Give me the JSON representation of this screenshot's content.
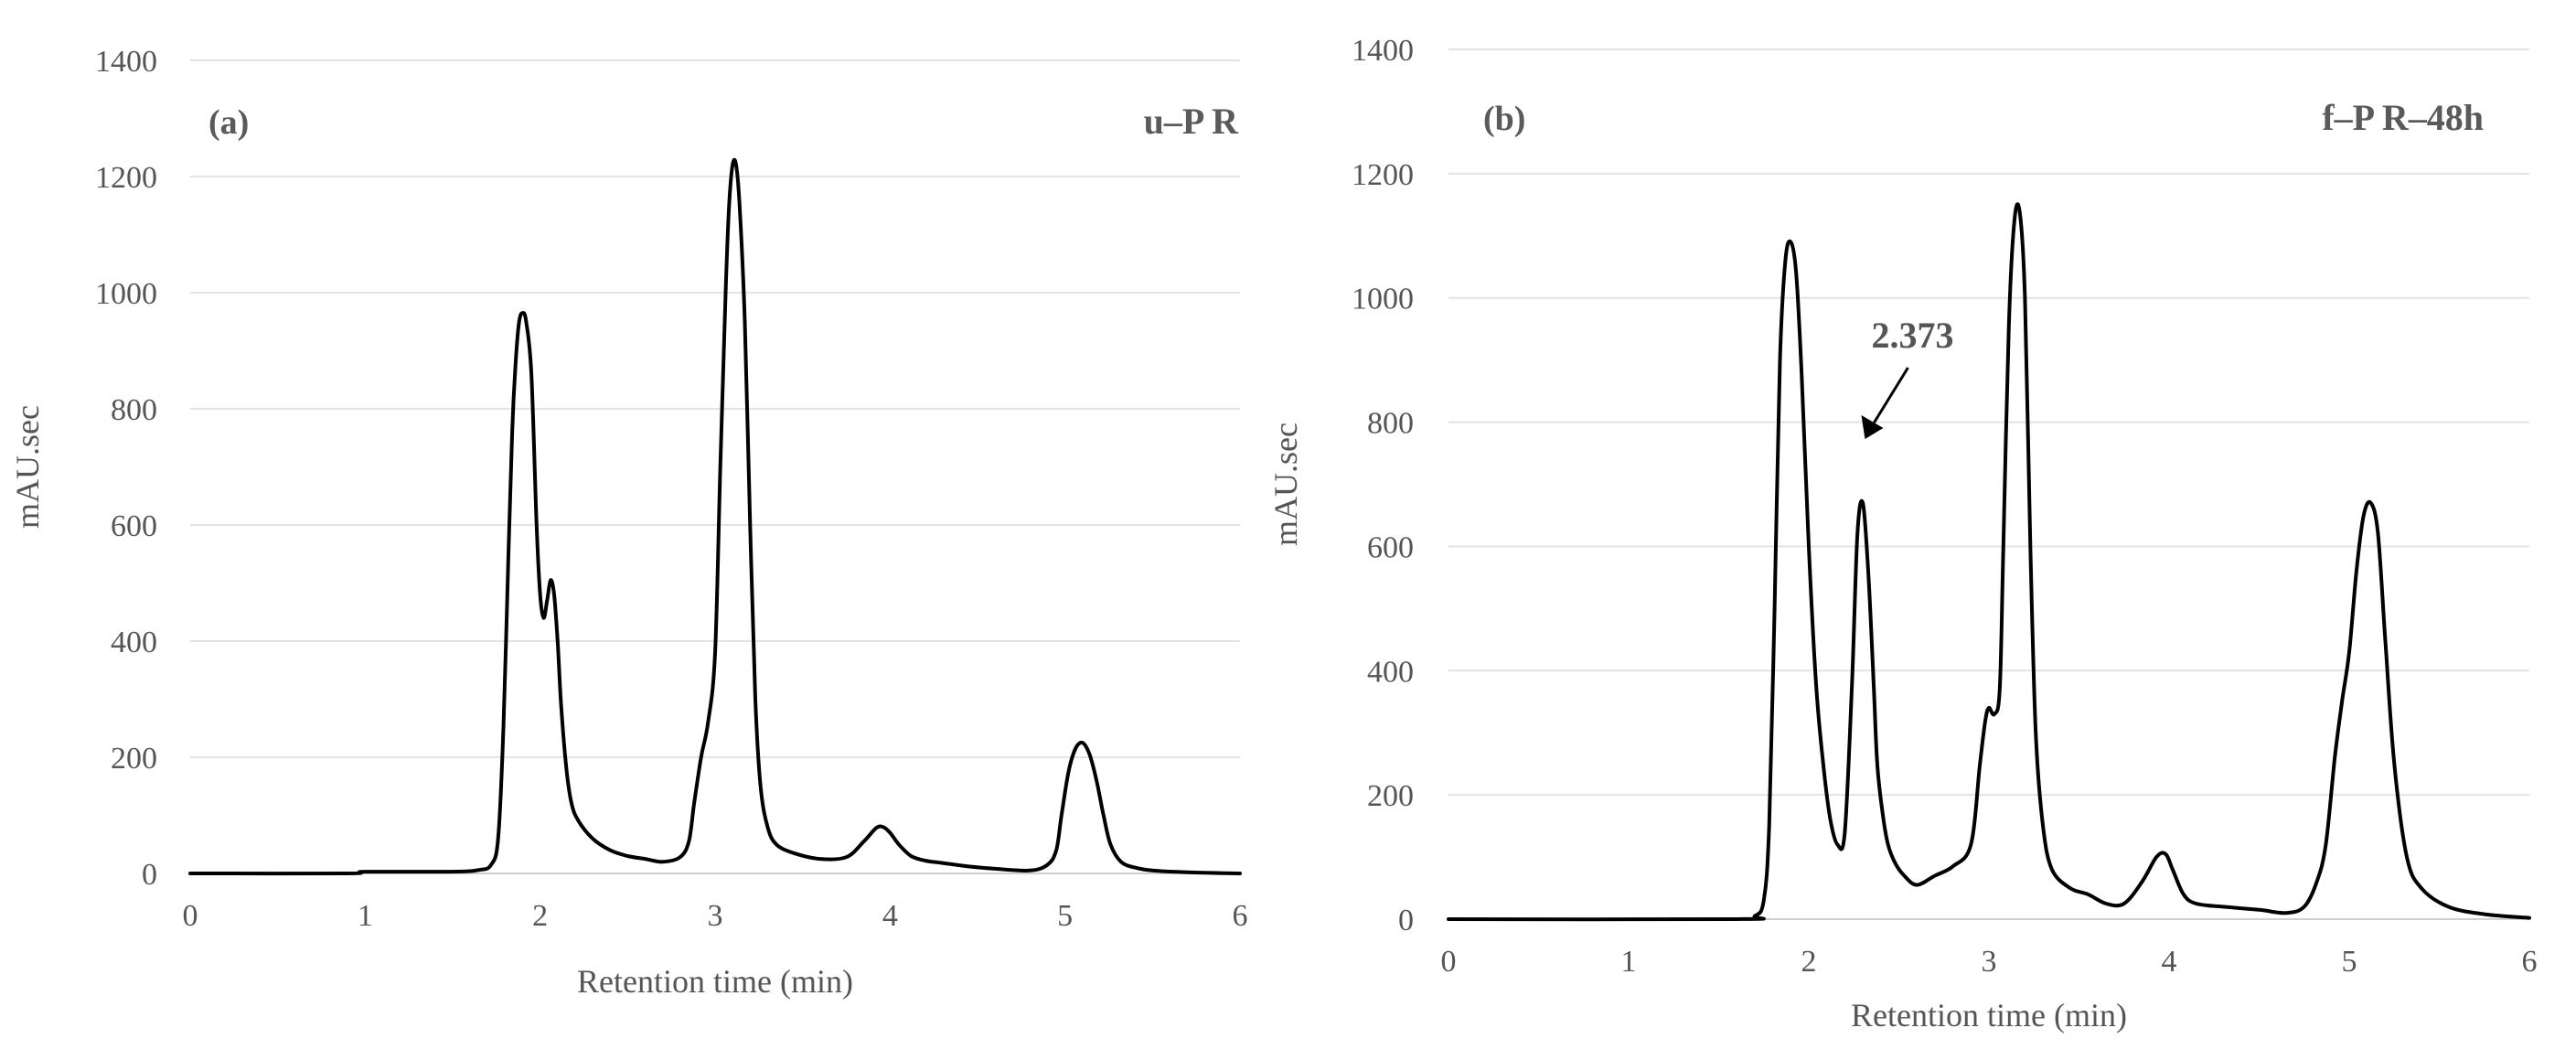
{
  "chart_data": [
    {
      "type": "line",
      "panel_label": "(a)",
      "sample_label": "u–P R",
      "title": "",
      "xlabel": "Retention time (min)",
      "ylabel": "mAU.sec",
      "xlim": [
        0,
        6
      ],
      "ylim": [
        0,
        1400
      ],
      "xticks": [
        0,
        1,
        2,
        3,
        4,
        5,
        6
      ],
      "yticks": [
        0,
        200,
        400,
        600,
        800,
        1000,
        1200,
        1400
      ],
      "grid": "horizontal",
      "series": [
        {
          "x": [
            0,
            0.9,
            1.0,
            1.5,
            1.65,
            1.72,
            1.76,
            1.79,
            1.82,
            1.84,
            1.86,
            1.88,
            1.9,
            1.92,
            1.95,
            1.98,
            2.0,
            2.02,
            2.04,
            2.06,
            2.08,
            2.1,
            2.12,
            2.15,
            2.18,
            2.22,
            2.3,
            2.4,
            2.5,
            2.6,
            2.7,
            2.8,
            2.85,
            2.88,
            2.92,
            2.96,
            3.0,
            3.03,
            3.06,
            3.08,
            3.1,
            3.12,
            3.14,
            3.17,
            3.2,
            3.23,
            3.26,
            3.3,
            3.35,
            3.45,
            3.6,
            3.75,
            3.85,
            3.92,
            3.96,
            4.0,
            4.05,
            4.12,
            4.2,
            4.3,
            4.45,
            4.6,
            4.8,
            4.9,
            4.95,
            4.98,
            5.02,
            5.06,
            5.1,
            5.14,
            5.18,
            5.22,
            5.26,
            5.32,
            5.4,
            5.5,
            5.7,
            6.0
          ],
          "values": [
            0,
            0,
            3,
            3,
            6,
            15,
            60,
            250,
            560,
            760,
            880,
            950,
            965,
            950,
            860,
            600,
            480,
            440,
            470,
            505,
            480,
            400,
            290,
            180,
            120,
            90,
            60,
            40,
            30,
            25,
            20,
            28,
            55,
            120,
            200,
            260,
            380,
            700,
            1000,
            1150,
            1220,
            1220,
            1150,
            950,
            600,
            300,
            150,
            80,
            50,
            35,
            25,
            28,
            55,
            78,
            80,
            70,
            50,
            30,
            22,
            18,
            12,
            8,
            5,
            15,
            40,
            100,
            175,
            215,
            225,
            205,
            160,
            100,
            50,
            20,
            10,
            5,
            2,
            0
          ]
        }
      ]
    },
    {
      "type": "line",
      "panel_label": "(b)",
      "sample_label": "f–P R–48h",
      "title": "",
      "xlabel": "Retention time (min)",
      "ylabel": "mAU.sec",
      "xlim": [
        0,
        6
      ],
      "ylim": [
        0,
        1400
      ],
      "xticks": [
        0,
        1,
        2,
        3,
        4,
        5,
        6
      ],
      "yticks": [
        0,
        200,
        400,
        600,
        800,
        1000,
        1200,
        1400
      ],
      "grid": "horizontal",
      "annotation": {
        "text": "2.373",
        "x": 2.373
      },
      "series": [
        {
          "x": [
            0,
            1.6,
            1.7,
            1.75,
            1.78,
            1.81,
            1.84,
            1.87,
            1.9,
            1.93,
            1.96,
            2.0,
            2.04,
            2.08,
            2.12,
            2.16,
            2.2,
            2.24,
            2.27,
            2.3,
            2.33,
            2.36,
            2.38,
            2.41,
            2.44,
            2.48,
            2.53,
            2.6,
            2.7,
            2.8,
            2.9,
            2.95,
            2.98,
            3.0,
            3.03,
            3.06,
            3.08,
            3.11,
            3.14,
            3.17,
            3.2,
            3.23,
            3.26,
            3.3,
            3.35,
            3.45,
            3.55,
            3.65,
            3.75,
            3.85,
            3.93,
            3.98,
            4.02,
            4.08,
            4.15,
            4.3,
            4.5,
            4.65,
            4.75,
            4.82,
            4.87,
            4.92,
            4.96,
            5.0,
            5.04,
            5.08,
            5.12,
            5.16,
            5.2,
            5.25,
            5.32,
            5.4,
            5.55,
            5.75,
            6.0
          ],
          "values": [
            0,
            0,
            5,
            30,
            150,
            500,
            900,
            1060,
            1090,
            1040,
            880,
            600,
            380,
            250,
            160,
            120,
            140,
            380,
            620,
            670,
            560,
            380,
            250,
            170,
            120,
            90,
            70,
            55,
            70,
            85,
            120,
            250,
            320,
            340,
            330,
            370,
            600,
            950,
            1120,
            1140,
            1000,
            600,
            300,
            150,
            80,
            50,
            40,
            25,
            25,
            60,
            100,
            105,
            80,
            40,
            25,
            20,
            15,
            10,
            20,
            60,
            120,
            260,
            350,
            430,
            560,
            650,
            670,
            620,
            450,
            250,
            100,
            50,
            20,
            8,
            2
          ]
        }
      ]
    }
  ]
}
